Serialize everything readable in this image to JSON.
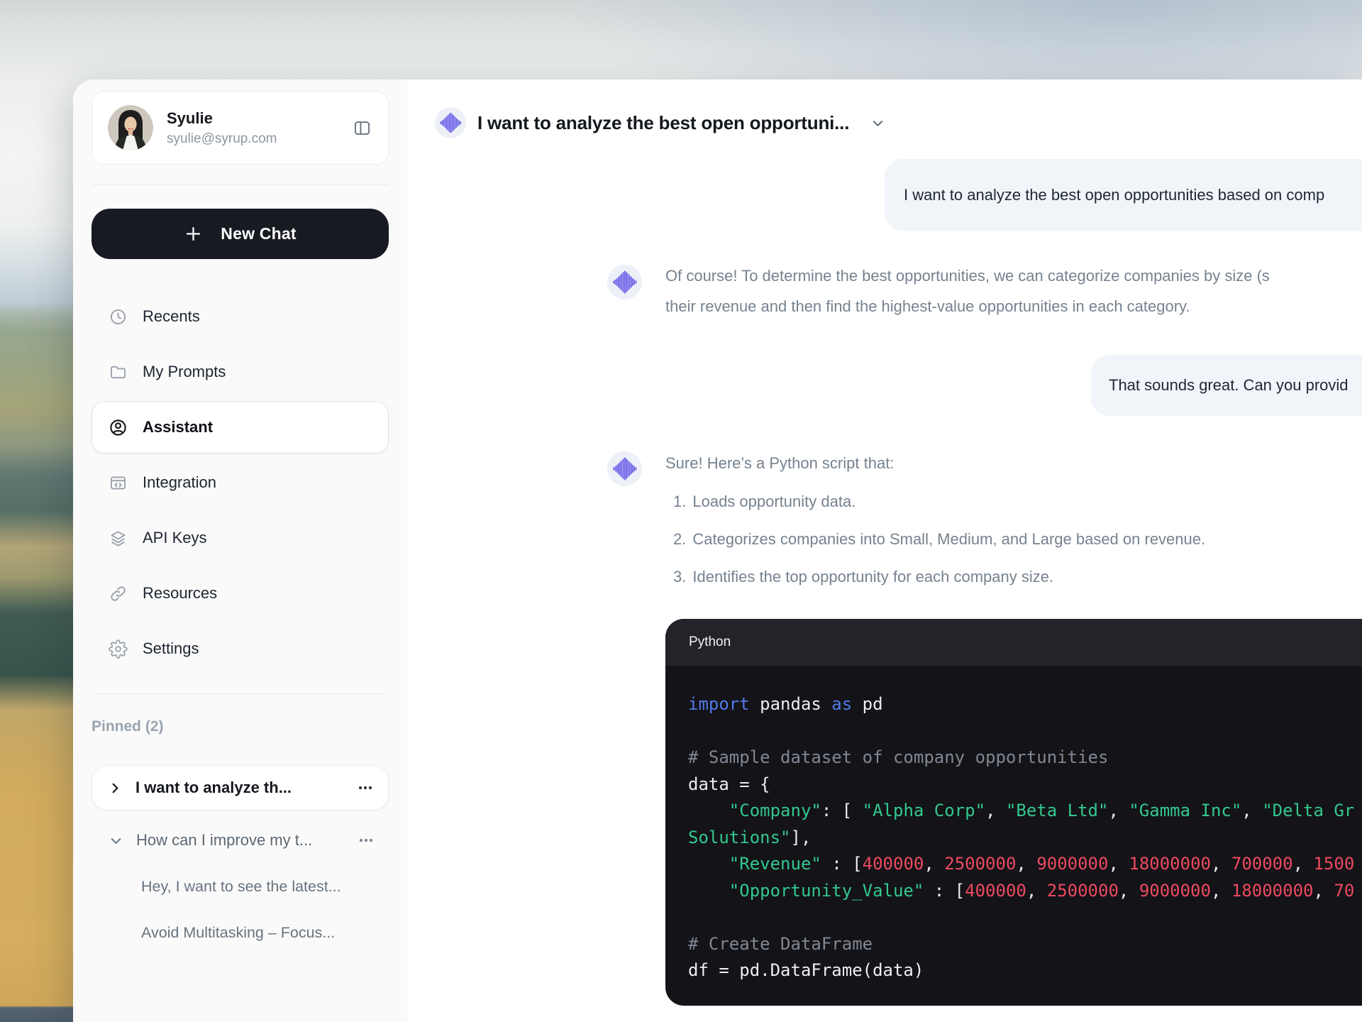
{
  "user": {
    "name": "Syulie",
    "email": "syulie@syrup.com"
  },
  "sidebar": {
    "new_chat_label": "New Chat",
    "nav": [
      {
        "label": "Recents",
        "icon": "clock-icon"
      },
      {
        "label": "My Prompts",
        "icon": "folder-icon"
      },
      {
        "label": "Assistant",
        "icon": "user-circle-icon",
        "active": true
      },
      {
        "label": "Integration",
        "icon": "browser-code-icon"
      },
      {
        "label": "API Keys",
        "icon": "layers-icon"
      },
      {
        "label": "Resources",
        "icon": "link-icon"
      },
      {
        "label": "Settings",
        "icon": "gear-icon"
      }
    ],
    "pinned": {
      "header": "Pinned (2)",
      "items": [
        {
          "label": "I want to analyze th..."
        },
        {
          "label": "How can I improve my t..."
        }
      ],
      "sub_items": [
        "Hey, I want to see the latest...",
        "Avoid Multitasking – Focus..."
      ]
    }
  },
  "chat": {
    "header": {
      "title": "I want to analyze the best open opportuni..."
    },
    "messages": [
      {
        "role": "user",
        "text": "I want to analyze the best open opportunities based on comp"
      },
      {
        "role": "assistant",
        "lines": [
          "Of course! To determine the best opportunities, we can categorize companies by size (s",
          "their revenue and then find the highest-value opportunities in each category."
        ]
      },
      {
        "role": "user",
        "text": "That sounds great. Can you provid"
      },
      {
        "role": "assistant",
        "intro": "Sure! Here’s a Python script that:",
        "list": [
          {
            "marker": "1.",
            "text": "Loads opportunity data."
          },
          {
            "marker": "2.",
            "text": "Categorizes companies into Small, Medium, and Large based on revenue."
          },
          {
            "marker": "3.",
            "text": "Identifies the top opportunity for each company size."
          }
        ]
      }
    ],
    "code": {
      "language": "Python",
      "lines": [
        [
          [
            "k",
            "import"
          ],
          [
            "p",
            " pandas "
          ],
          [
            "k",
            "as"
          ],
          [
            "p",
            " pd"
          ]
        ],
        [],
        [
          [
            "c",
            "# Sample dataset of company opportunities"
          ]
        ],
        [
          [
            "p",
            "data = {"
          ]
        ],
        [
          [
            "p",
            "    "
          ],
          [
            "s",
            "\"Company\""
          ],
          [
            "p",
            ": [ "
          ],
          [
            "s",
            "\"Alpha Corp\""
          ],
          [
            "p",
            ", "
          ],
          [
            "s",
            "\"Beta Ltd\""
          ],
          [
            "p",
            ", "
          ],
          [
            "s",
            "\"Gamma Inc\""
          ],
          [
            "p",
            ", "
          ],
          [
            "s",
            "\"Delta Gr"
          ]
        ],
        [
          [
            "s",
            "Solutions\""
          ],
          [
            "p",
            "],"
          ]
        ],
        [
          [
            "p",
            "    "
          ],
          [
            "s",
            "\"Revenue\""
          ],
          [
            "p",
            " : ["
          ],
          [
            "n",
            "400000"
          ],
          [
            "p",
            ", "
          ],
          [
            "n",
            "2500000"
          ],
          [
            "p",
            ", "
          ],
          [
            "n",
            "9000000"
          ],
          [
            "p",
            ", "
          ],
          [
            "n",
            "18000000"
          ],
          [
            "p",
            ", "
          ],
          [
            "n",
            "700000"
          ],
          [
            "p",
            ", "
          ],
          [
            "n",
            "1500"
          ]
        ],
        [
          [
            "p",
            "    "
          ],
          [
            "s",
            "\"Opportunity_Value\""
          ],
          [
            "p",
            " : ["
          ],
          [
            "n",
            "400000"
          ],
          [
            "p",
            ", "
          ],
          [
            "n",
            "2500000"
          ],
          [
            "p",
            ", "
          ],
          [
            "n",
            "9000000"
          ],
          [
            "p",
            ", "
          ],
          [
            "n",
            "18000000"
          ],
          [
            "p",
            ", "
          ],
          [
            "n",
            "70"
          ]
        ],
        [],
        [
          [
            "c",
            "# Create DataFrame"
          ]
        ],
        [
          [
            "p",
            "df = pd.DataFrame(data)"
          ]
        ]
      ]
    }
  },
  "colors": {
    "accent_purple": "#6157e6",
    "new_chat_bg": "#171a21",
    "bubble_bg": "#f1f4f9",
    "code_bg": "#131318",
    "code_header_bg": "#232329",
    "code_keyword": "#537ae8",
    "code_string": "#34c88e",
    "code_number": "#ee4a60",
    "code_comment": "#818893"
  }
}
